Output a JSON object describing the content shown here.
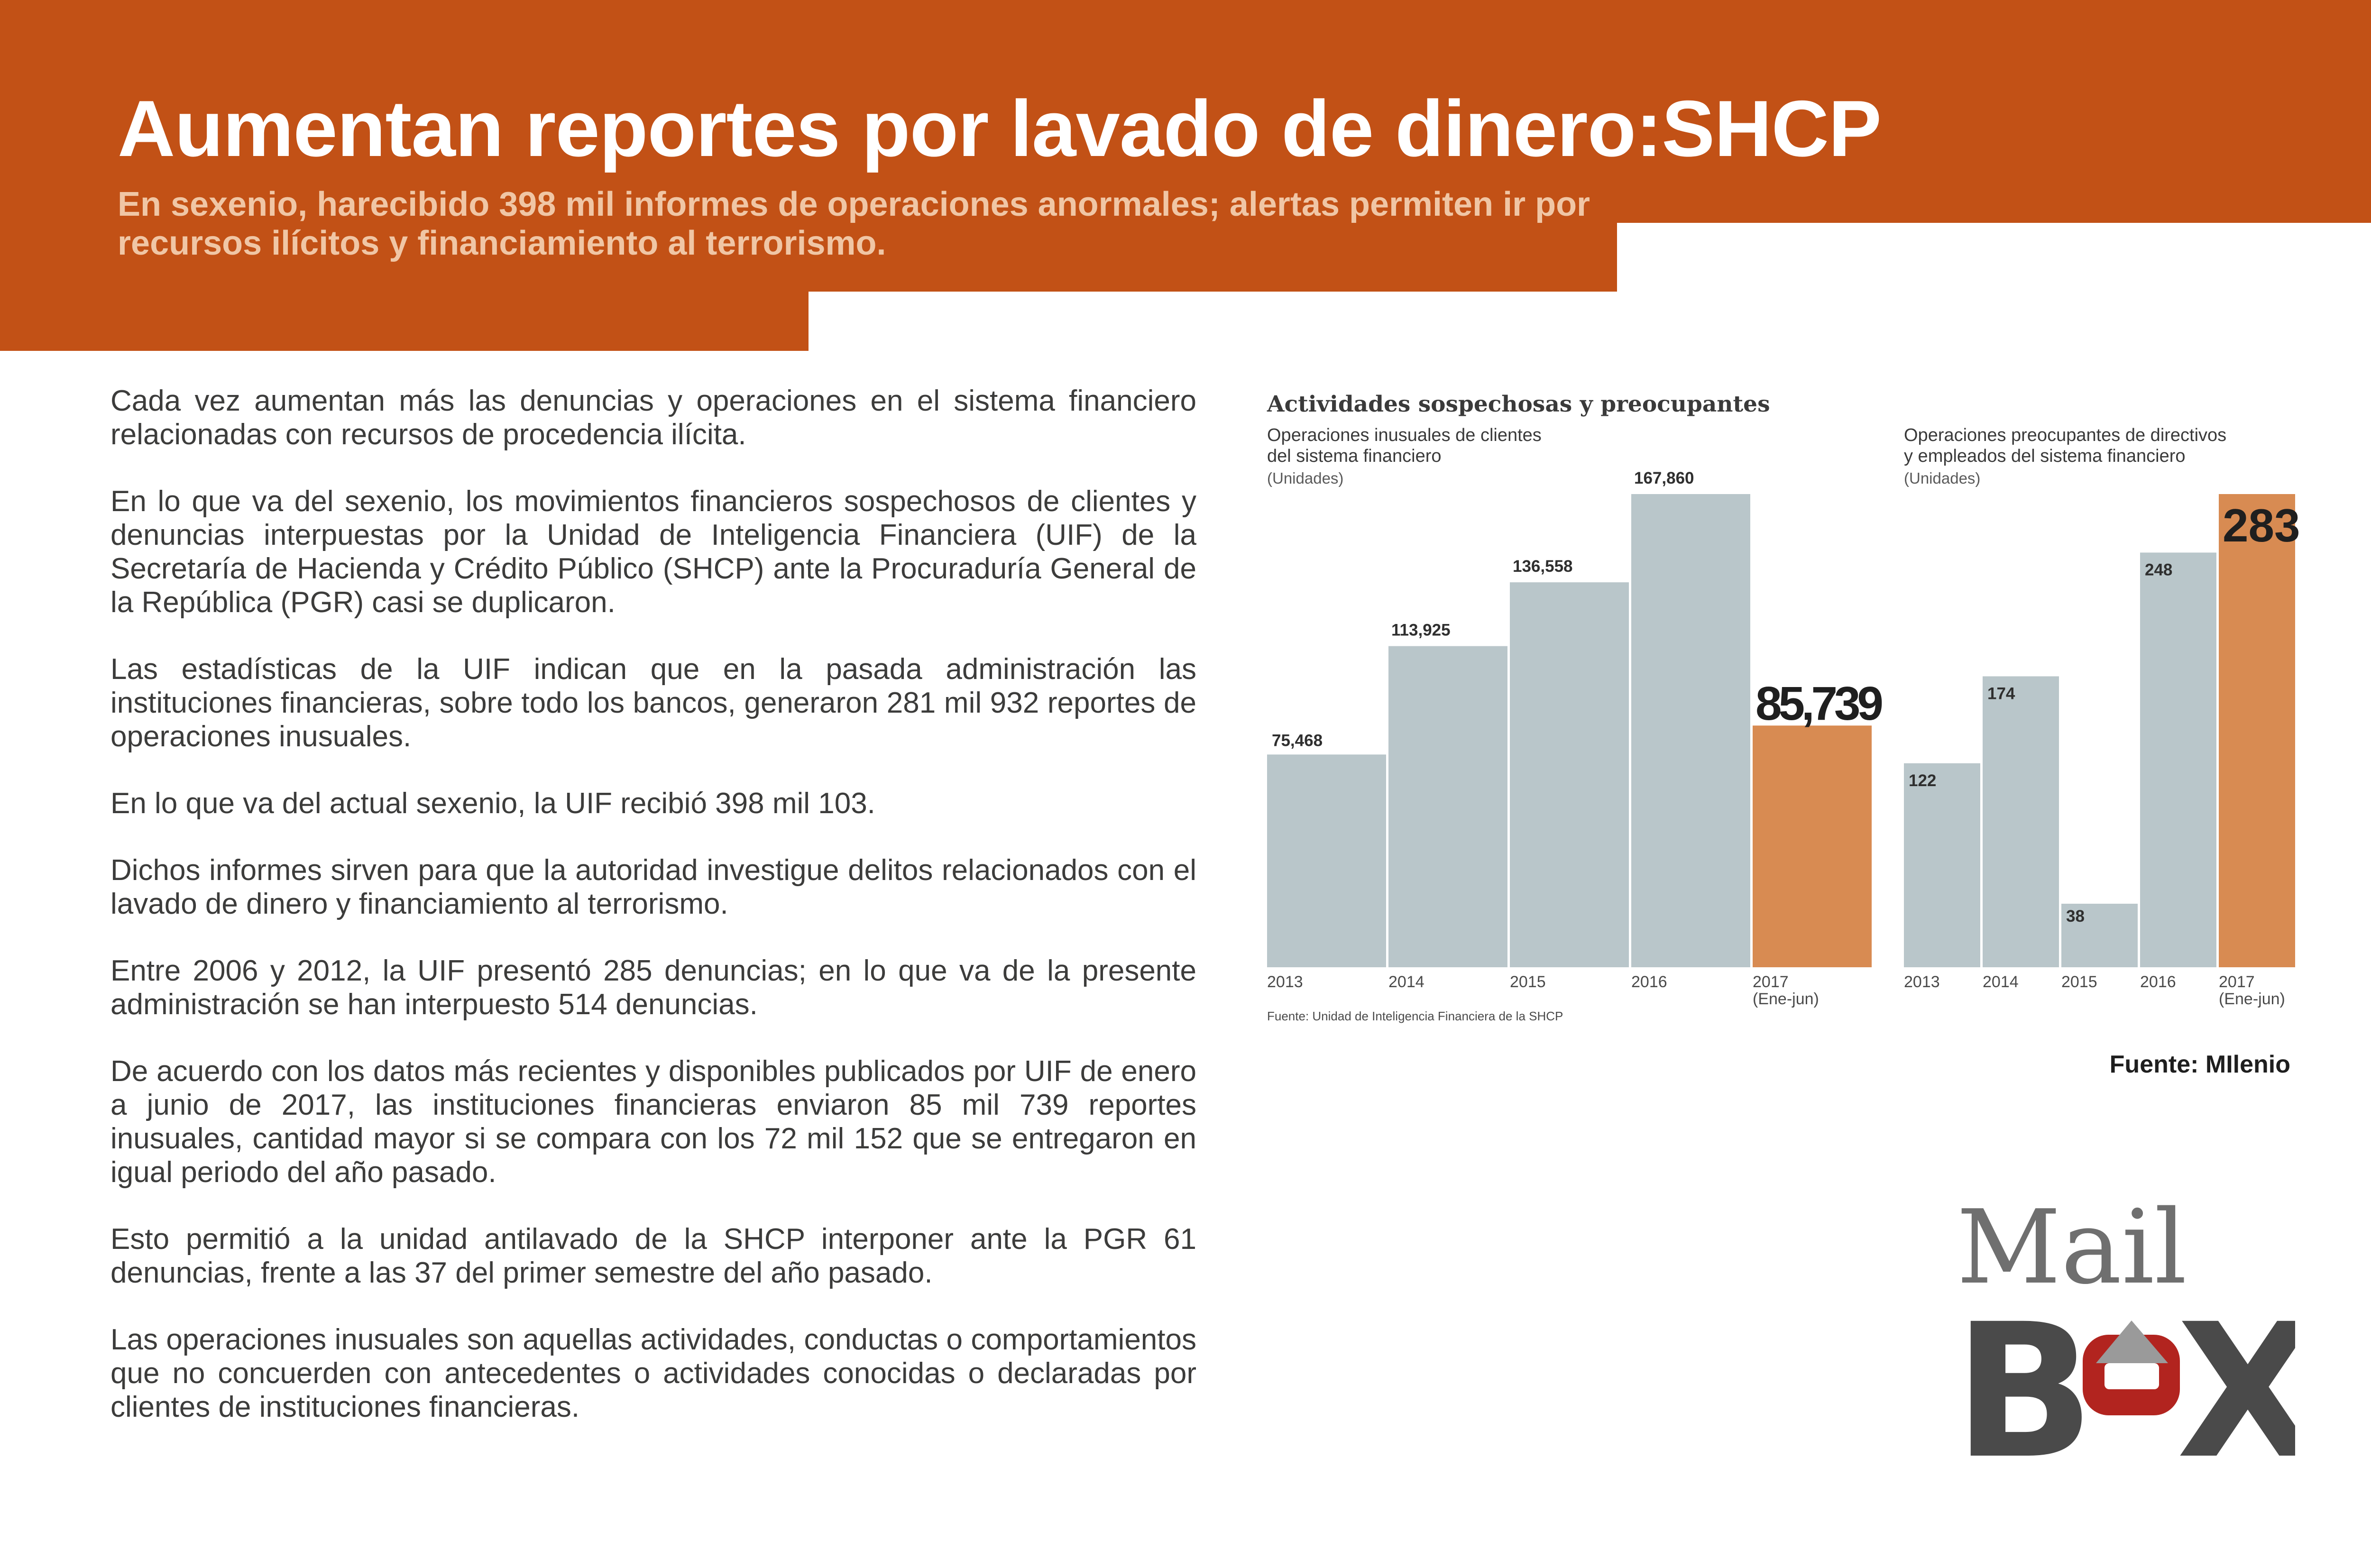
{
  "header": {
    "title": "Aumentan reportes por lavado de dinero:SHCP",
    "subtitle": "En sexenio, harecibido 398 mil informes de operaciones anormales; alertas permiten ir por recursos ilícitos y financiamiento al terrorismo."
  },
  "colors": {
    "banner": "#c25116",
    "bar_normal": "#b9c6ca",
    "bar_highlight": "#d88b52"
  },
  "article": {
    "paragraphs": [
      "Cada vez aumentan más las denuncias y operaciones en el sistema financiero relacionadas con recursos de procedencia ilícita.",
      "En lo que va del sexenio, los movimientos financieros sospechosos de clientes y denuncias interpuestas por la Unidad de Inteligencia Financiera (UIF) de la Secretaría de Hacienda y Crédito Público (SHCP) ante la Procuraduría General de la República (PGR) casi se duplicaron.",
      "Las estadísticas de la UIF indican que en la pasada administración las instituciones financieras, sobre todo los bancos, generaron 281 mil 932 reportes de operaciones inusuales.",
      "En lo que va del actual sexenio, la UIF recibió 398 mil 103.",
      "Dichos informes sirven para que la autoridad investigue delitos relacionados con el lavado de dinero y financiamiento al terrorismo.",
      "Entre 2006 y 2012, la UIF presentó 285 denuncias; en lo que va de la presente administración se han interpuesto 514 denuncias.",
      "De acuerdo con los datos más recientes y disponibles publicados por UIF de enero a junio de 2017, las instituciones financieras enviaron 85 mil 739 reportes inusuales, cantidad mayor si se compara con los 72 mil 152 que se entregaron en igual periodo del año pasado.",
      "Esto permitió a la unidad antilavado de la SHCP interponer ante la PGR 61 denuncias, frente a las 37 del primer semestre del año pasado.",
      "Las operaciones inusuales son aquellas actividades, conductas o comportamientos que no concuerden con antecedentes o actividades conocidas o declaradas por clientes de instituciones financieras."
    ]
  },
  "chart_title": "Actividades sospechosas y preocupantes",
  "chart_source": "Fuente: Unidad de Inteligencia Financiera de la SHCP",
  "chart_data": [
    {
      "type": "bar",
      "title": "Operaciones inusuales de clientes del sistema financiero",
      "title_lines": [
        "Operaciones inusuales de clientes",
        "del sistema financiero"
      ],
      "unit": "(Unidades)",
      "categories": [
        "2013",
        "2014",
        "2015",
        "2016",
        "2017"
      ],
      "category_notes": [
        "",
        "",
        "",
        "",
        "(Ene-jun)"
      ],
      "values": [
        75468,
        113925,
        136558,
        167860,
        85739
      ],
      "value_labels": [
        "75,468",
        "113,925",
        "136,558",
        "167,860",
        "85,739"
      ],
      "highlight_index": 4,
      "ylim": [
        0,
        167860
      ]
    },
    {
      "type": "bar",
      "title": "Operaciones preocupantes de directivos y empleados del sistema financiero",
      "title_lines": [
        "Operaciones preocupantes de directivos",
        "y empleados del sistema financiero"
      ],
      "unit": "(Unidades)",
      "categories": [
        "2013",
        "2014",
        "2015",
        "2016",
        "2017"
      ],
      "category_notes": [
        "",
        "",
        "",
        "",
        "(Ene-jun)"
      ],
      "values": [
        122,
        174,
        38,
        248,
        283
      ],
      "value_labels": [
        "122",
        "174",
        "38",
        "248",
        "283"
      ],
      "highlight_index": 4,
      "ylim": [
        0,
        283
      ]
    }
  ],
  "credit": "Fuente: MIlenio",
  "logo": {
    "top_text": "Mail",
    "letters": [
      "B",
      "X"
    ]
  }
}
